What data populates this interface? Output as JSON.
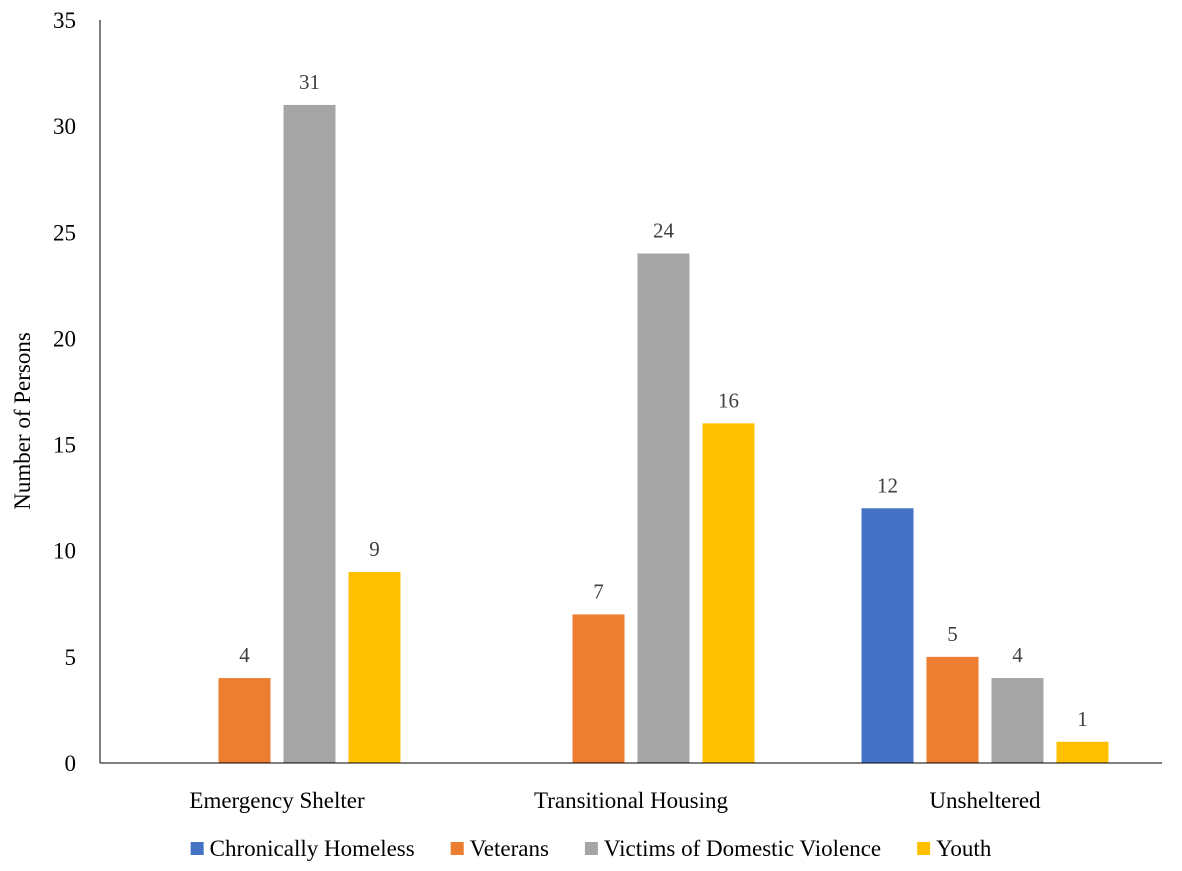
{
  "chart_data": {
    "type": "bar",
    "title": "",
    "xlabel": "",
    "ylabel": "Number of Persons",
    "ylim": [
      0,
      35
    ],
    "yticks": [
      0,
      5,
      10,
      15,
      20,
      25,
      30,
      35
    ],
    "categories": [
      "Emergency Shelter",
      "Transitional Housing",
      "Unsheltered"
    ],
    "series": [
      {
        "name": "Chronically Homeless",
        "color": "#4472C4",
        "values": [
          null,
          null,
          12
        ]
      },
      {
        "name": "Veterans",
        "color": "#ED7D31",
        "values": [
          4,
          7,
          5
        ]
      },
      {
        "name": "Victims of Domestic Violence",
        "color": "#A5A5A5",
        "values": [
          31,
          24,
          4
        ]
      },
      {
        "name": "Youth",
        "color": "#FFC000",
        "values": [
          9,
          16,
          1
        ]
      }
    ],
    "grid": false,
    "legend": "bottom",
    "data_labels": true
  }
}
